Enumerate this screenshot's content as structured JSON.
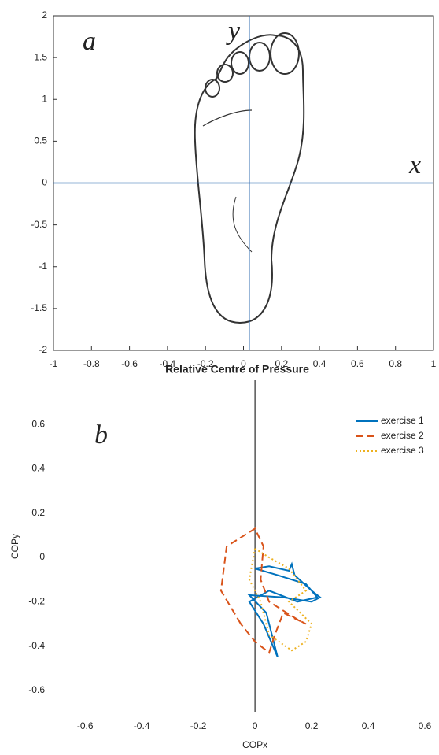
{
  "chart_data": [
    {
      "type": "image",
      "annotations": [
        "a",
        "y",
        "x"
      ],
      "axis_lines": {
        "x0": 0.03,
        "y0": 0,
        "color": "#2e6bb0"
      },
      "xlim": [
        -1,
        1
      ],
      "ylim": [
        -2,
        2
      ],
      "xticks": [
        -1,
        -0.8,
        -0.6,
        -0.4,
        -0.2,
        0,
        0.2,
        0.4,
        0.6,
        0.8,
        1
      ],
      "yticks": [
        -2,
        -1.5,
        -1,
        -0.5,
        0,
        0.5,
        1,
        1.5,
        2
      ],
      "frame": true
    },
    {
      "type": "line",
      "title": "Relative Centre of Pressure",
      "xlabel": "COPx",
      "ylabel": "COPy",
      "annotations": [
        "b"
      ],
      "xlim": [
        -0.72,
        0.65
      ],
      "ylim": [
        -0.7,
        0.8
      ],
      "xticks": [
        -0.6,
        -0.4,
        -0.2,
        0,
        0.2,
        0.4,
        0.6
      ],
      "yticks": [
        -0.6,
        -0.4,
        -0.2,
        0,
        0.2,
        0.4,
        0.6
      ],
      "frame": false,
      "zero_line": true,
      "legend": "upper right",
      "series": [
        {
          "name": "exercise 1",
          "color": "#0072bd",
          "dash": "solid",
          "x": [
            0,
            0.05,
            0.12,
            0.13,
            0.14,
            0.2,
            0.23,
            0.2,
            0.1,
            -0.02,
            0.04,
            0.08,
            0.03,
            -0.02,
            0.05,
            0.15,
            0.22,
            0.18,
            0.08,
            0
          ],
          "values": [
            -0.05,
            -0.04,
            -0.06,
            -0.03,
            -0.08,
            -0.15,
            -0.18,
            -0.2,
            -0.18,
            -0.17,
            -0.25,
            -0.45,
            -0.3,
            -0.2,
            -0.15,
            -0.2,
            -0.18,
            -0.12,
            -0.08,
            -0.05
          ]
        },
        {
          "name": "exercise 2",
          "color": "#d95319",
          "dash": "dashed",
          "x": [
            -0.05,
            -0.12,
            -0.1,
            0,
            0.03,
            0.02,
            0.05,
            0.15,
            0.18,
            0.1,
            0.07,
            0.05,
            0,
            -0.05
          ],
          "values": [
            -0.3,
            -0.15,
            0.05,
            0.13,
            0.05,
            -0.1,
            -0.2,
            -0.28,
            -0.3,
            -0.25,
            -0.35,
            -0.43,
            -0.38,
            -0.3
          ]
        },
        {
          "name": "exercise 3",
          "color": "#edb120",
          "dash": "dotted",
          "x": [
            0,
            0.05,
            0.12,
            0.18,
            0.12,
            0.2,
            0.18,
            0.13,
            0.05,
            0.02,
            -0.02,
            0
          ],
          "values": [
            0.04,
            0,
            -0.05,
            -0.15,
            -0.2,
            -0.3,
            -0.38,
            -0.42,
            -0.35,
            -0.2,
            -0.1,
            0.04
          ]
        }
      ]
    }
  ]
}
